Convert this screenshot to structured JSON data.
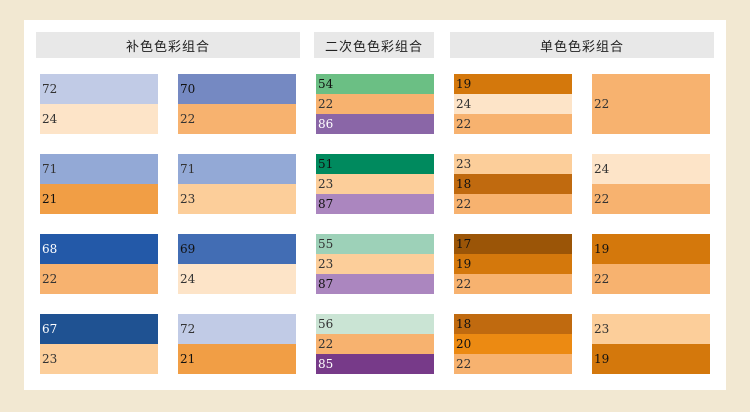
{
  "headers": {
    "complementary": "补色色彩组合",
    "secondary": "二次色色彩组合",
    "monochrome": "单色色彩组合"
  },
  "rows": [
    {
      "comp1": [
        {
          "label": "72",
          "color": "#C1CBE6",
          "text_color": "#333333"
        },
        {
          "label": "24",
          "color": "#FDE4C8",
          "text_color": "#333333"
        }
      ],
      "comp2": [
        {
          "label": "70",
          "color": "#7589C2",
          "text_color": "#111111"
        },
        {
          "label": "22",
          "color": "#F7B26F",
          "text_color": "#333333"
        }
      ],
      "secondary": [
        {
          "label": "54",
          "color": "#6BBF84",
          "text_color": "#111111"
        },
        {
          "label": "22",
          "color": "#F7B26F",
          "text_color": "#333333"
        },
        {
          "label": "86",
          "color": "#8A66A7",
          "text_color": "#FFFFFF"
        }
      ],
      "mono1": [
        {
          "label": "19",
          "color": "#D4780C",
          "text_color": "#111111"
        },
        {
          "label": "24",
          "color": "#FDE4C8",
          "text_color": "#333333"
        },
        {
          "label": "22",
          "color": "#F7B26F",
          "text_color": "#333333"
        }
      ],
      "mono2": [
        {
          "label": "22",
          "color": "#F7B26F",
          "text_color": "#333333"
        }
      ]
    },
    {
      "comp1": [
        {
          "label": "71",
          "color": "#93A9D6",
          "text_color": "#333333"
        },
        {
          "label": "21",
          "color": "#F19E45",
          "text_color": "#111111"
        }
      ],
      "comp2": [
        {
          "label": "71",
          "color": "#93A9D6",
          "text_color": "#333333"
        },
        {
          "label": "23",
          "color": "#FCCE9A",
          "text_color": "#333333"
        }
      ],
      "secondary": [
        {
          "label": "51",
          "color": "#008A5E",
          "text_color": "#111111"
        },
        {
          "label": "23",
          "color": "#FCCE9A",
          "text_color": "#333333"
        },
        {
          "label": "87",
          "color": "#AB86BF",
          "text_color": "#111111"
        }
      ],
      "mono1": [
        {
          "label": "23",
          "color": "#FCCE9A",
          "text_color": "#333333"
        },
        {
          "label": "18",
          "color": "#C06A0F",
          "text_color": "#111111"
        },
        {
          "label": "22",
          "color": "#F7B26F",
          "text_color": "#333333"
        }
      ],
      "mono2": [
        {
          "label": "24",
          "color": "#FDE4C8",
          "text_color": "#333333"
        },
        {
          "label": "22",
          "color": "#F7B26F",
          "text_color": "#333333"
        }
      ]
    },
    {
      "comp1": [
        {
          "label": "68",
          "color": "#2359A8",
          "text_color": "#FFFFFF"
        },
        {
          "label": "22",
          "color": "#F7B26F",
          "text_color": "#333333"
        }
      ],
      "comp2": [
        {
          "label": "69",
          "color": "#426DB4",
          "text_color": "#111111"
        },
        {
          "label": "24",
          "color": "#FDE4C8",
          "text_color": "#333333"
        }
      ],
      "secondary": [
        {
          "label": "55",
          "color": "#9DD1B8",
          "text_color": "#333333"
        },
        {
          "label": "23",
          "color": "#FCCE9A",
          "text_color": "#333333"
        },
        {
          "label": "87",
          "color": "#AB86BF",
          "text_color": "#111111"
        }
      ],
      "mono1": [
        {
          "label": "17",
          "color": "#9B5507",
          "text_color": "#111111"
        },
        {
          "label": "19",
          "color": "#D4780C",
          "text_color": "#111111"
        },
        {
          "label": "22",
          "color": "#F7B26F",
          "text_color": "#333333"
        }
      ],
      "mono2": [
        {
          "label": "19",
          "color": "#D4780C",
          "text_color": "#111111"
        },
        {
          "label": "22",
          "color": "#F7B26F",
          "text_color": "#333333"
        }
      ]
    },
    {
      "comp1": [
        {
          "label": "67",
          "color": "#1F5292",
          "text_color": "#FFFFFF"
        },
        {
          "label": "23",
          "color": "#FCCE9A",
          "text_color": "#333333"
        }
      ],
      "comp2": [
        {
          "label": "72",
          "color": "#C1CBE6",
          "text_color": "#333333"
        },
        {
          "label": "21",
          "color": "#F19E45",
          "text_color": "#111111"
        }
      ],
      "secondary": [
        {
          "label": "56",
          "color": "#CAE4D4",
          "text_color": "#333333"
        },
        {
          "label": "22",
          "color": "#F7B26F",
          "text_color": "#333333"
        },
        {
          "label": "85",
          "color": "#773A89",
          "text_color": "#FFFFFF"
        }
      ],
      "mono1": [
        {
          "label": "18",
          "color": "#C06A0F",
          "text_color": "#111111"
        },
        {
          "label": "20",
          "color": "#EC8A12",
          "text_color": "#111111"
        },
        {
          "label": "22",
          "color": "#F7B26F",
          "text_color": "#333333"
        }
      ],
      "mono2": [
        {
          "label": "23",
          "color": "#FCCE9A",
          "text_color": "#333333"
        },
        {
          "label": "19",
          "color": "#D4780C",
          "text_color": "#111111"
        }
      ]
    }
  ]
}
